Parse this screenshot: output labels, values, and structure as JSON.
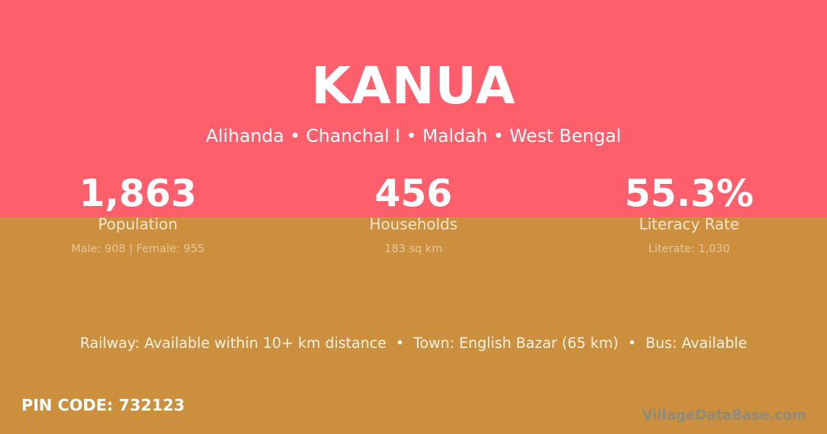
{
  "colors": {
    "top": "#FF5F6D",
    "bottom": "#CB8F3E"
  },
  "village": "KANUA",
  "location": "Alihanda • Chanchal I • Maldah • West Bengal",
  "stats": [
    {
      "value": "1,863",
      "label": "Population",
      "detail": "Male: 908 | Female: 955"
    },
    {
      "value": "456",
      "label": "Households",
      "detail": "183 sq km"
    },
    {
      "value": "55.3%",
      "label": "Literacy Rate",
      "detail": "Literate: 1,030"
    }
  ],
  "connectivity": "Railway: Available within 10+ km distance  •  Town: English Bazar (65 km)  •  Bus: Available",
  "pin": "PIN CODE: 732123",
  "watermark": "VillageDataBase.com"
}
